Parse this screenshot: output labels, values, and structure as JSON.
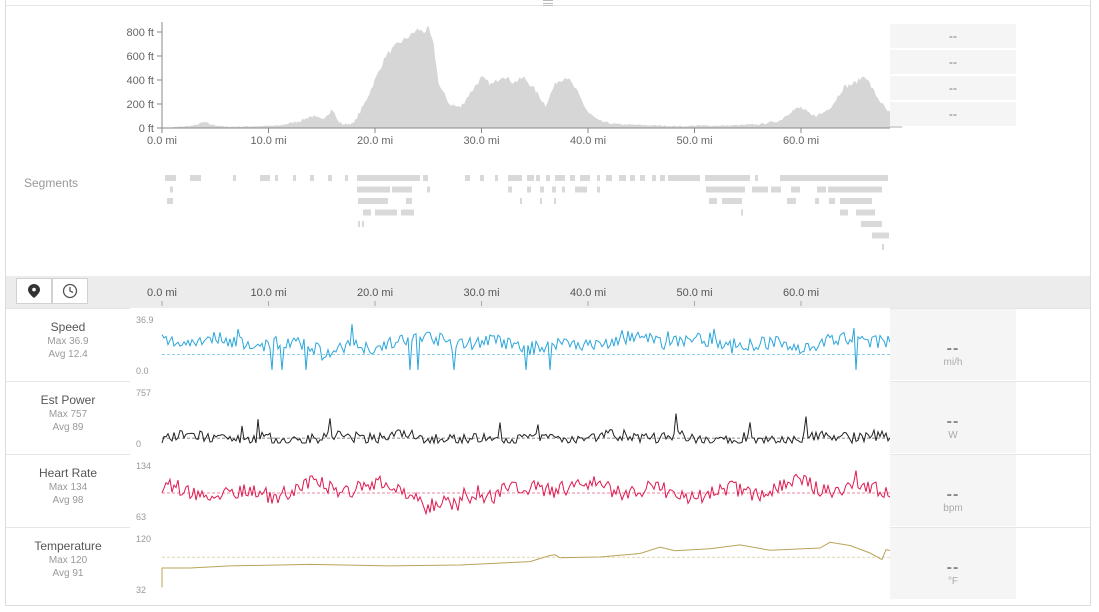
{
  "elevation": {
    "y_ticks": [
      "800 ft",
      "600 ft",
      "400 ft",
      "200 ft",
      "0 ft"
    ],
    "x_ticks": [
      "0.0 mi",
      "10.0 mi",
      "20.0 mi",
      "30.0 mi",
      "40.0 mi",
      "50.0 mi",
      "60.0 mi"
    ],
    "stats": [
      "--",
      "--",
      "--",
      "--"
    ],
    "fill_color": "#d6d6d6"
  },
  "segments": {
    "label": "Segments"
  },
  "toolbar": {
    "distance_icon": "map-pin-icon",
    "time_icon": "clock-icon",
    "x_ticks": [
      "0.0 mi",
      "10.0 mi",
      "20.0 mi",
      "30.0 mi",
      "40.0 mi",
      "50.0 mi",
      "60.0 mi"
    ]
  },
  "streams": [
    {
      "name": "Speed",
      "max": "Max 36.9",
      "avg": "Avg 12.4",
      "ymax": "36.9",
      "ymin": "0.0",
      "value": "--",
      "unit": "mi/h",
      "color": "#2aa6dc"
    },
    {
      "name": "Est Power",
      "max": "Max 757",
      "avg": "Avg 89",
      "ymax": "757",
      "ymin": "0",
      "value": "--",
      "unit": "W",
      "color": "#222222"
    },
    {
      "name": "Heart Rate",
      "max": "Max 134",
      "avg": "Avg 98",
      "ymax": "134",
      "ymin": "63",
      "value": "--",
      "unit": "bpm",
      "color": "#e0184f"
    },
    {
      "name": "Temperature",
      "max": "Max 120",
      "avg": "Avg 91",
      "ymax": "120",
      "ymin": "32",
      "value": "--",
      "unit": "°F",
      "color": "#b9a45a"
    }
  ]
}
